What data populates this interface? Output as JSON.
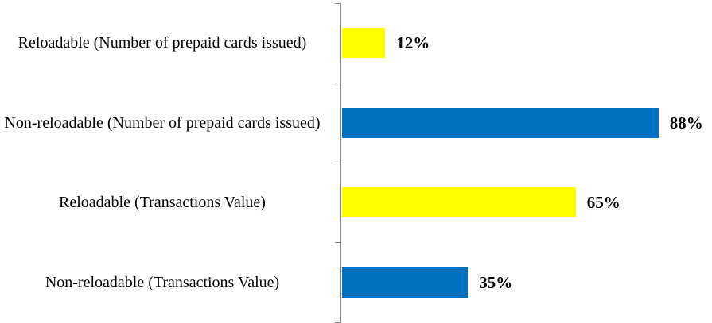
{
  "chart_data": {
    "type": "bar",
    "orientation": "horizontal",
    "categories": [
      "Reloadable (Number of prepaid cards issued)",
      "Non-reloadable (Number of prepaid cards issued)",
      "Reloadable (Transactions Value)",
      "Non-reloadable (Transactions Value)"
    ],
    "values": [
      12,
      88,
      65,
      35
    ],
    "value_labels": [
      "12%",
      "88%",
      "65%",
      "35%"
    ],
    "colors": [
      "#ffff00",
      "#0070c0",
      "#ffff00",
      "#0070c0"
    ]
  }
}
